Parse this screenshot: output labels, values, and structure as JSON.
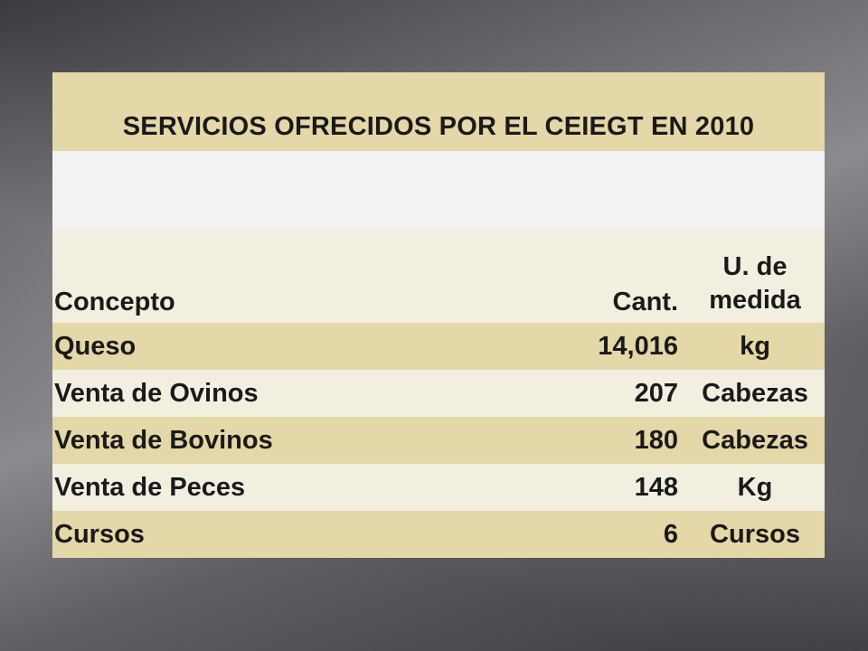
{
  "table": {
    "title": "SERVICIOS OFRECIDOS POR EL CEIEGT EN 2010",
    "headers": {
      "concept": "Concepto",
      "quantity": "Cant.",
      "unit_line1": "U. de",
      "unit_line2": "medida"
    },
    "rows": [
      {
        "concept": "Queso",
        "quantity": "14,016",
        "unit": "kg"
      },
      {
        "concept": "Venta de Ovinos",
        "quantity": "207",
        "unit": "Cabezas"
      },
      {
        "concept": "Venta de Bovinos",
        "quantity": "180",
        "unit": "Cabezas"
      },
      {
        "concept": "Venta de Peces",
        "quantity": "148",
        "unit": "Kg"
      },
      {
        "concept": "Cursos",
        "quantity": "6",
        "unit": "Cursos"
      }
    ]
  },
  "colors": {
    "row_dark": "#e4d7a8",
    "row_light": "#f3efe0",
    "blank_row": "#f2f2f2"
  }
}
